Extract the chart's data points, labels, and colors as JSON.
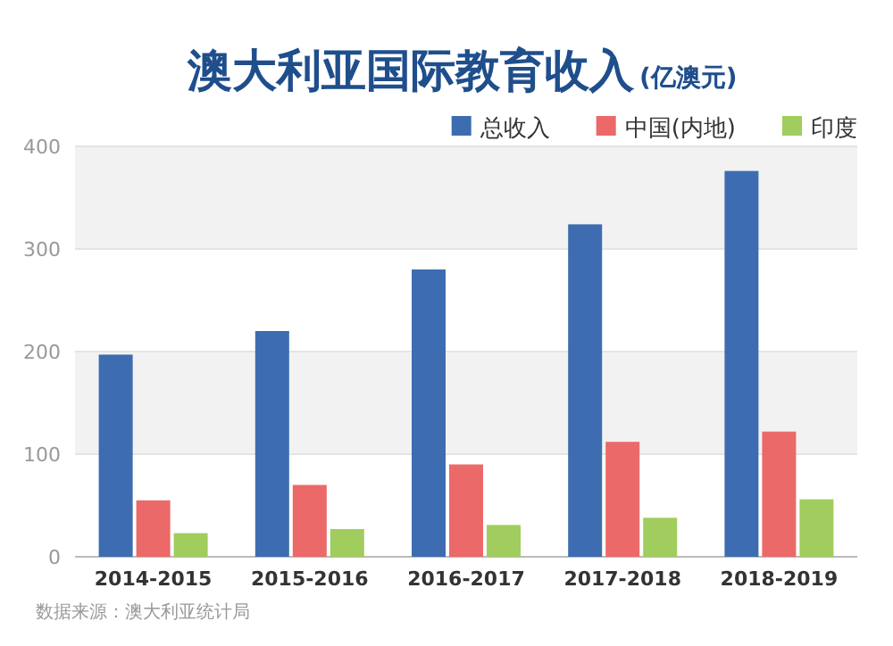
{
  "chart_data": {
    "type": "bar",
    "title": "澳大利亚国际教育收入",
    "subtitle": "(亿澳元)",
    "categories": [
      "2014-2015",
      "2015-2016",
      "2016-2017",
      "2017-2018",
      "2018-2019"
    ],
    "series": [
      {
        "name": "总收入",
        "color": "#3d6db0",
        "values": [
          197,
          220,
          280,
          324,
          376
        ]
      },
      {
        "name": "中国(内地)",
        "color": "#eb6969",
        "values": [
          55,
          70,
          90,
          112,
          122
        ]
      },
      {
        "name": "印度",
        "color": "#a1cc5e",
        "values": [
          23,
          27,
          31,
          38,
          56
        ]
      }
    ],
    "ylim": [
      0,
      400
    ],
    "yticks": [
      0,
      100,
      200,
      300,
      400
    ],
    "grid": "y",
    "legend": "top right",
    "annotations": [
      "数据来源：澳大利亚统计局"
    ]
  }
}
